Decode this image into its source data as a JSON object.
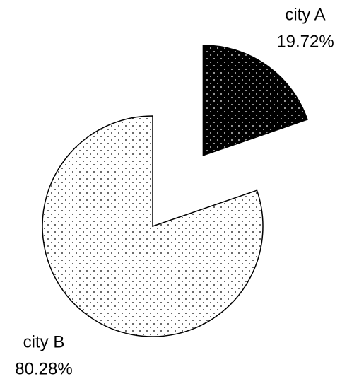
{
  "chart_data": {
    "type": "pie",
    "categories": [
      "city A",
      "city B"
    ],
    "values": [
      19.72,
      80.28
    ],
    "value_labels": [
      "19.72%",
      "80.28%"
    ],
    "colors": [
      "#000000",
      "#ffffff"
    ]
  }
}
